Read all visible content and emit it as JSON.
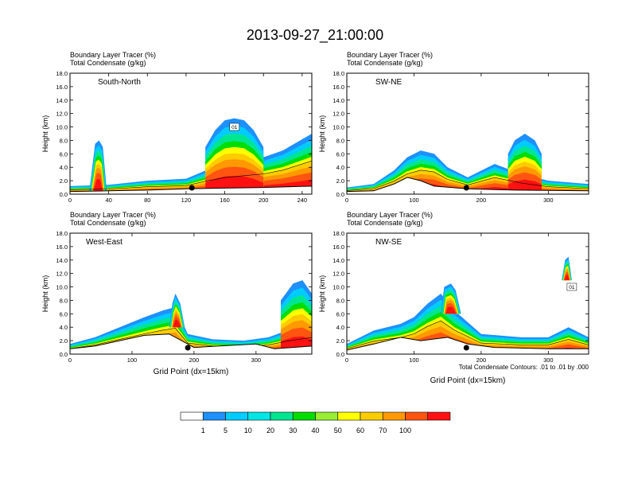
{
  "title": "2013-09-27_21:00:00",
  "footnote": "Total Condensate Contours: .01 to .01 by .000",
  "colorbar": {
    "colors": [
      "#ffffff",
      "#1e90ff",
      "#00ccff",
      "#00e5e5",
      "#00e690",
      "#00dd00",
      "#99ee33",
      "#ffff00",
      "#ffcc00",
      "#ff9900",
      "#ff5511",
      "#ff1111"
    ],
    "labels": [
      "1",
      "5",
      "10",
      "20",
      "30",
      "40",
      "50",
      "60",
      "70",
      "100"
    ]
  },
  "chart_data": [
    {
      "type": "heatmap",
      "variable1": "Boundary Layer Tracer   (%)",
      "variable2": "Total Condensate   (g/kg)",
      "label": "South-North",
      "ylabel": "Height (km)",
      "xlabel": "",
      "xlim": [
        0,
        250
      ],
      "ylim": [
        0,
        18
      ],
      "xticks": [
        0,
        40,
        80,
        120,
        160,
        200,
        240
      ],
      "yticks": [
        "0.0",
        "2.0",
        "4.0",
        "6.0",
        "8.0",
        "10.0",
        "12.0",
        "14.0",
        "16.0",
        "18.0"
      ],
      "marker_x": 126,
      "contour_label": "01",
      "terrain": [
        [
          0,
          0.4
        ],
        [
          40,
          0.5
        ],
        [
          80,
          0.6
        ],
        [
          120,
          0.8
        ],
        [
          160,
          0.9
        ],
        [
          200,
          1.0
        ],
        [
          250,
          1.2
        ]
      ],
      "plumes": [
        {
          "x": [
            0,
            40,
            80,
            120,
            140,
            160,
            180,
            200,
            220,
            250
          ],
          "y": [
            1.2,
            1.4,
            2.0,
            2.3,
            3.5,
            4.5,
            5.0,
            5.5,
            6.5,
            9.0
          ]
        },
        {
          "x": [
            20,
            26,
            30,
            34,
            38
          ],
          "y": [
            0.5,
            7.5,
            8.0,
            7.0,
            0.5
          ]
        },
        {
          "x": [
            140,
            150,
            160,
            170,
            180,
            190,
            200
          ],
          "y": [
            7.0,
            9.5,
            11.0,
            11.3,
            11.0,
            9.5,
            7.0
          ]
        }
      ]
    },
    {
      "type": "heatmap",
      "variable1": "Boundary Layer Tracer   (%)",
      "variable2": "Total Condensate   (g/kg)",
      "label": "SW-NE",
      "ylabel": "Height (km)",
      "xlabel": "",
      "xlim": [
        0,
        360
      ],
      "ylim": [
        0,
        18
      ],
      "xticks": [
        0,
        100,
        200,
        300
      ],
      "yticks": [
        "0.0",
        "2.0",
        "4.0",
        "6.0",
        "8.0",
        "10.0",
        "12.0",
        "14.0",
        "16.0",
        "18.0"
      ],
      "marker_x": 178,
      "contour_label": "",
      "terrain": [
        [
          0,
          0.4
        ],
        [
          40,
          0.5
        ],
        [
          70,
          1.5
        ],
        [
          90,
          2.5
        ],
        [
          110,
          2.0
        ],
        [
          130,
          1.2
        ],
        [
          180,
          0.8
        ],
        [
          250,
          0.6
        ],
        [
          360,
          0.5
        ]
      ],
      "plumes": [
        {
          "x": [
            0,
            40,
            70,
            90,
            110,
            130,
            150,
            180,
            220,
            260,
            300,
            360
          ],
          "y": [
            1.0,
            1.5,
            3.5,
            5.5,
            6.5,
            6.0,
            4.0,
            2.5,
            4.5,
            3.0,
            2.0,
            1.5
          ]
        },
        {
          "x": [
            240,
            250,
            265,
            280,
            290
          ],
          "y": [
            6.0,
            8.0,
            9.0,
            8.0,
            6.0
          ]
        }
      ]
    },
    {
      "type": "heatmap",
      "variable1": "Boundary Layer Tracer   (%)",
      "variable2": "Total Condensate   (g/kg)",
      "label": "West-East",
      "ylabel": "Height (km)",
      "xlabel": "Grid Point (dx=15km)",
      "xlim": [
        0,
        390
      ],
      "ylim": [
        0,
        18
      ],
      "xticks": [
        0,
        100,
        200,
        300
      ],
      "yticks": [
        "0.0",
        "2.0",
        "4.0",
        "6.0",
        "8.0",
        "10.0",
        "12.0",
        "14.0",
        "16.0",
        "18.0"
      ],
      "marker_x": 190,
      "contour_label": "",
      "terrain": [
        [
          0,
          0.8
        ],
        [
          40,
          1.2
        ],
        [
          80,
          2.0
        ],
        [
          120,
          2.8
        ],
        [
          160,
          3.0
        ],
        [
          180,
          2.0
        ],
        [
          200,
          1.0
        ],
        [
          300,
          1.5
        ],
        [
          330,
          0.8
        ],
        [
          390,
          1.2
        ]
      ],
      "plumes": [
        {
          "x": [
            0,
            40,
            80,
            120,
            150,
            170,
            190,
            230,
            280,
            320,
            350,
            390
          ],
          "y": [
            1.5,
            2.5,
            4.0,
            5.5,
            6.5,
            7.0,
            3.0,
            2.2,
            2.0,
            2.5,
            3.5,
            4.5
          ]
        },
        {
          "x": [
            160,
            165,
            170,
            178,
            185
          ],
          "y": [
            4.0,
            7.5,
            9.0,
            7.5,
            4.0
          ]
        },
        {
          "x": [
            340,
            360,
            375,
            390
          ],
          "y": [
            8.0,
            10.5,
            11.0,
            9.0
          ]
        }
      ]
    },
    {
      "type": "heatmap",
      "variable1": "Boundary Layer Tracer   (%)",
      "variable2": "Total Condensate   (g/kg)",
      "label": "NW-SE",
      "ylabel": "Height (km)",
      "xlabel": "Grid Point (dx=15km)",
      "xlim": [
        0,
        360
      ],
      "ylim": [
        0,
        18
      ],
      "xticks": [
        0,
        100,
        200,
        300
      ],
      "yticks": [
        "0.0",
        "2.0",
        "4.0",
        "6.0",
        "8.0",
        "10.0",
        "12.0",
        "14.0",
        "16.0",
        "18.0"
      ],
      "marker_x": 178,
      "contour_label": "01",
      "terrain": [
        [
          0,
          0.6
        ],
        [
          40,
          1.5
        ],
        [
          80,
          2.5
        ],
        [
          110,
          2.0
        ],
        [
          150,
          2.5
        ],
        [
          180,
          1.5
        ],
        [
          220,
          1.0
        ],
        [
          300,
          0.8
        ],
        [
          360,
          0.8
        ]
      ],
      "plumes": [
        {
          "x": [
            0,
            40,
            80,
            100,
            120,
            140,
            160,
            200,
            260,
            300,
            330,
            360
          ],
          "y": [
            1.5,
            3.5,
            4.5,
            5.5,
            7.5,
            9.0,
            6.5,
            3.0,
            2.5,
            2.5,
            4.0,
            2.5
          ]
        },
        {
          "x": [
            140,
            145,
            155,
            162,
            170
          ],
          "y": [
            6.0,
            10.0,
            10.5,
            9.5,
            6.0
          ]
        },
        {
          "x": [
            320,
            325,
            330,
            335
          ],
          "y": [
            11.0,
            14.0,
            14.5,
            11.0
          ]
        }
      ]
    }
  ]
}
